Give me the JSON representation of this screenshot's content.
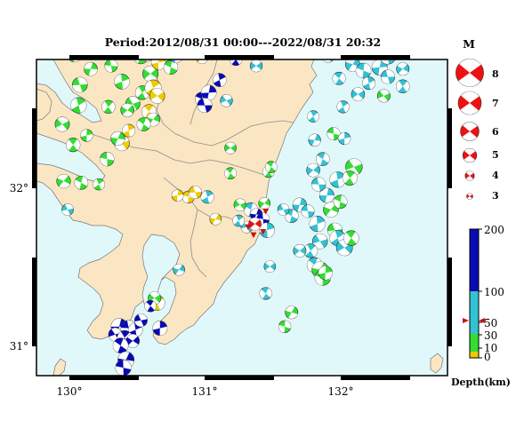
{
  "title": "Period:2012/08/31 00:00---2022/08/31 20:32",
  "map": {
    "lon_ticks": [
      "130°",
      "131°",
      "132°"
    ],
    "lat_ticks": [
      "32°",
      "31°"
    ],
    "colors": {
      "sea": "#e1f8fa",
      "land": "#fae6c3",
      "border": "#8c8c8c",
      "frame": "#000000",
      "mainshock": "#ee1111",
      "station": "#cc1111"
    }
  },
  "magnitude_legend": {
    "heading": "M",
    "items": [
      "8",
      "7",
      "6",
      "5",
      "4",
      "3"
    ]
  },
  "depth_legend": {
    "ticks": [
      "200",
      "100",
      "50",
      "30",
      "10",
      "0"
    ],
    "label": "Depth(km)",
    "colors": {
      "deep": "#0a0ab4",
      "mid": "#33c2d3",
      "shallow": "#33dd33",
      "surface": "#eecc00"
    }
  },
  "events": [
    {
      "lon": 130.36,
      "lat": 31.24,
      "m": 4.4,
      "d": "deep"
    },
    {
      "lon": 130.43,
      "lat": 31.23,
      "m": 4.3,
      "d": "deep"
    },
    {
      "lon": 130.48,
      "lat": 31.22,
      "m": 4.0,
      "d": "deep"
    },
    {
      "lon": 130.33,
      "lat": 31.19,
      "m": 3.9,
      "d": "deep"
    },
    {
      "lon": 130.4,
      "lat": 31.17,
      "m": 4.1,
      "d": "deep"
    },
    {
      "lon": 130.46,
      "lat": 31.15,
      "m": 3.9,
      "d": "deep"
    },
    {
      "lon": 130.37,
      "lat": 31.12,
      "m": 4.2,
      "d": "deep"
    },
    {
      "lon": 130.41,
      "lat": 31.03,
      "m": 4.4,
      "d": "deep"
    },
    {
      "lon": 130.39,
      "lat": 30.98,
      "m": 4.3,
      "d": "deep"
    },
    {
      "lon": 130.66,
      "lat": 31.23,
      "m": 4.1,
      "d": "deep"
    },
    {
      "lon": 130.52,
      "lat": 31.28,
      "m": 3.8,
      "d": "deep"
    },
    {
      "lon": 130.64,
      "lat": 31.39,
      "m": 4.2,
      "d": "surface"
    },
    {
      "lon": 130.62,
      "lat": 31.42,
      "m": 3.8,
      "d": "shallow"
    },
    {
      "lon": 130.59,
      "lat": 31.37,
      "m": 3.6,
      "d": "deep"
    },
    {
      "lon": 130.8,
      "lat": 31.6,
      "m": 3.6,
      "d": "mid"
    },
    {
      "lon": 130.97,
      "lat": 32.68,
      "m": 4.0,
      "d": "deep"
    },
    {
      "lon": 131.02,
      "lat": 32.72,
      "m": 4.2,
      "d": "deep"
    },
    {
      "lon": 130.99,
      "lat": 32.64,
      "m": 4.1,
      "d": "deep"
    },
    {
      "lon": 131.1,
      "lat": 32.8,
      "m": 3.9,
      "d": "deep"
    },
    {
      "lon": 131.15,
      "lat": 32.67,
      "m": 3.7,
      "d": "mid"
    },
    {
      "lon": 131.22,
      "lat": 32.93,
      "m": 3.7,
      "d": "deep"
    },
    {
      "lon": 130.97,
      "lat": 32.94,
      "m": 3.6,
      "d": "surface"
    },
    {
      "lon": 131.33,
      "lat": 31.98,
      "m": 4.0,
      "d": "mid"
    },
    {
      "lon": 131.37,
      "lat": 31.95,
      "m": 3.7,
      "d": "deep"
    },
    {
      "lon": 131.42,
      "lat": 31.92,
      "m": 3.8,
      "d": "deep"
    },
    {
      "lon": 131.45,
      "lat": 31.85,
      "m": 4.2,
      "d": "mid"
    },
    {
      "lon": 131.3,
      "lat": 31.87,
      "m": 3.6,
      "d": "mid"
    },
    {
      "lon": 131.24,
      "lat": 31.91,
      "m": 3.6,
      "d": "mid"
    },
    {
      "lon": 131.47,
      "lat": 31.62,
      "m": 3.6,
      "d": "mid"
    },
    {
      "lon": 131.44,
      "lat": 31.45,
      "m": 3.7,
      "d": "mid"
    },
    {
      "lon": 131.07,
      "lat": 31.92,
      "m": 3.6,
      "d": "surface"
    },
    {
      "lon": 130.87,
      "lat": 32.06,
      "m": 3.7,
      "d": "surface"
    },
    {
      "lon": 130.79,
      "lat": 32.07,
      "m": 3.6,
      "d": "surface"
    },
    {
      "lon": 130.92,
      "lat": 32.09,
      "m": 3.8,
      "d": "surface"
    },
    {
      "lon": 131.01,
      "lat": 32.06,
      "m": 3.8,
      "d": "mid"
    },
    {
      "lon": 131.25,
      "lat": 32.01,
      "m": 3.7,
      "d": "shallow"
    },
    {
      "lon": 131.46,
      "lat": 32.22,
      "m": 3.6,
      "d": "shallow"
    },
    {
      "lon": 131.43,
      "lat": 32.02,
      "m": 3.6,
      "d": "shallow"
    },
    {
      "lon": 131.63,
      "lat": 31.94,
      "m": 3.9,
      "d": "mid"
    },
    {
      "lon": 131.69,
      "lat": 32.01,
      "m": 4.0,
      "d": "mid"
    },
    {
      "lon": 131.75,
      "lat": 31.97,
      "m": 3.8,
      "d": "mid"
    },
    {
      "lon": 131.82,
      "lat": 31.89,
      "m": 4.3,
      "d": "mid"
    },
    {
      "lon": 131.84,
      "lat": 31.78,
      "m": 4.2,
      "d": "mid"
    },
    {
      "lon": 131.77,
      "lat": 31.72,
      "m": 4.0,
      "d": "mid"
    },
    {
      "lon": 131.69,
      "lat": 31.72,
      "m": 3.8,
      "d": "mid"
    },
    {
      "lon": 131.8,
      "lat": 31.63,
      "m": 4.2,
      "d": "mid"
    },
    {
      "lon": 131.84,
      "lat": 31.6,
      "m": 4.4,
      "d": "shallow"
    },
    {
      "lon": 131.86,
      "lat": 31.55,
      "m": 4.3,
      "d": "shallow"
    },
    {
      "lon": 131.88,
      "lat": 31.58,
      "m": 4.0,
      "d": "shallow"
    },
    {
      "lon": 131.95,
      "lat": 31.85,
      "m": 4.1,
      "d": "shallow"
    },
    {
      "lon": 131.97,
      "lat": 31.8,
      "m": 4.3,
      "d": "mid"
    },
    {
      "lon": 132.02,
      "lat": 31.74,
      "m": 4.4,
      "d": "mid"
    },
    {
      "lon": 132.07,
      "lat": 31.8,
      "m": 4.2,
      "d": "shallow"
    },
    {
      "lon": 131.92,
      "lat": 31.98,
      "m": 4.2,
      "d": "shallow"
    },
    {
      "lon": 131.99,
      "lat": 32.03,
      "m": 3.9,
      "d": "shallow"
    },
    {
      "lon": 131.89,
      "lat": 32.07,
      "m": 4.1,
      "d": "mid"
    },
    {
      "lon": 131.83,
      "lat": 32.14,
      "m": 4.0,
      "d": "mid"
    },
    {
      "lon": 131.97,
      "lat": 32.17,
      "m": 4.3,
      "d": "mid"
    },
    {
      "lon": 132.09,
      "lat": 32.25,
      "m": 4.5,
      "d": "shallow"
    },
    {
      "lon": 132.06,
      "lat": 32.18,
      "m": 4.1,
      "d": "shallow"
    },
    {
      "lon": 131.79,
      "lat": 32.23,
      "m": 3.9,
      "d": "mid"
    },
    {
      "lon": 131.86,
      "lat": 32.3,
      "m": 3.9,
      "d": "mid"
    },
    {
      "lon": 131.8,
      "lat": 32.42,
      "m": 3.7,
      "d": "mid"
    },
    {
      "lon": 131.94,
      "lat": 32.46,
      "m": 3.8,
      "d": "shallow"
    },
    {
      "lon": 132.02,
      "lat": 32.43,
      "m": 3.7,
      "d": "mid"
    },
    {
      "lon": 131.57,
      "lat": 31.98,
      "m": 3.6,
      "d": "mid"
    },
    {
      "lon": 132.01,
      "lat": 32.63,
      "m": 3.7,
      "d": "mid"
    },
    {
      "lon": 132.12,
      "lat": 32.71,
      "m": 3.9,
      "d": "mid"
    },
    {
      "lon": 131.98,
      "lat": 32.81,
      "m": 3.8,
      "d": "mid"
    },
    {
      "lon": 132.08,
      "lat": 32.9,
      "m": 4.1,
      "d": "mid"
    },
    {
      "lon": 132.16,
      "lat": 32.86,
      "m": 4.2,
      "d": "mid"
    },
    {
      "lon": 132.28,
      "lat": 32.88,
      "m": 4.3,
      "d": "mid"
    },
    {
      "lon": 132.34,
      "lat": 32.82,
      "m": 4.0,
      "d": "mid"
    },
    {
      "lon": 132.2,
      "lat": 32.78,
      "m": 3.8,
      "d": "mid"
    },
    {
      "lon": 132.31,
      "lat": 32.7,
      "m": 3.8,
      "d": "shallow"
    },
    {
      "lon": 132.45,
      "lat": 32.76,
      "m": 3.9,
      "d": "mid"
    },
    {
      "lon": 132.45,
      "lat": 32.87,
      "m": 3.8,
      "d": "mid"
    },
    {
      "lon": 132.04,
      "lat": 32.98,
      "m": 3.9,
      "d": "mid"
    },
    {
      "lon": 132.22,
      "lat": 32.99,
      "m": 4.0,
      "d": "mid"
    },
    {
      "lon": 132.34,
      "lat": 32.95,
      "m": 4.3,
      "d": "mid"
    },
    {
      "lon": 132.5,
      "lat": 32.97,
      "m": 3.9,
      "d": "mid"
    },
    {
      "lon": 131.9,
      "lat": 32.95,
      "m": 3.7,
      "d": "mid"
    },
    {
      "lon": 131.79,
      "lat": 32.57,
      "m": 3.6,
      "d": "mid"
    },
    {
      "lon": 131.37,
      "lat": 32.89,
      "m": 3.7,
      "d": "mid"
    },
    {
      "lon": 131.48,
      "lat": 32.25,
      "m": 3.6,
      "d": "shallow"
    },
    {
      "lon": 131.63,
      "lat": 31.33,
      "m": 3.8,
      "d": "shallow"
    },
    {
      "lon": 131.58,
      "lat": 31.24,
      "m": 3.7,
      "d": "shallow"
    },
    {
      "lon": 130.03,
      "lat": 32.96,
      "m": 4.1,
      "d": "shallow"
    },
    {
      "lon": 130.07,
      "lat": 32.77,
      "m": 4.2,
      "d": "shallow"
    },
    {
      "lon": 130.06,
      "lat": 32.64,
      "m": 4.3,
      "d": "shallow"
    },
    {
      "lon": 129.94,
      "lat": 32.52,
      "m": 4.1,
      "d": "shallow"
    },
    {
      "lon": 130.02,
      "lat": 32.39,
      "m": 4.0,
      "d": "shallow"
    },
    {
      "lon": 129.95,
      "lat": 32.16,
      "m": 4.0,
      "d": "shallow"
    },
    {
      "lon": 130.08,
      "lat": 32.15,
      "m": 3.9,
      "d": "shallow"
    },
    {
      "lon": 130.15,
      "lat": 32.87,
      "m": 3.9,
      "d": "shallow"
    },
    {
      "lon": 130.3,
      "lat": 32.89,
      "m": 3.8,
      "d": "shallow"
    },
    {
      "lon": 130.38,
      "lat": 32.79,
      "m": 4.2,
      "d": "shallow"
    },
    {
      "lon": 130.46,
      "lat": 32.65,
      "m": 4.1,
      "d": "shallow"
    },
    {
      "lon": 130.53,
      "lat": 32.72,
      "m": 4.0,
      "d": "shallow"
    },
    {
      "lon": 130.59,
      "lat": 32.84,
      "m": 4.3,
      "d": "shallow"
    },
    {
      "lon": 130.52,
      "lat": 32.95,
      "m": 4.2,
      "d": "shallow"
    },
    {
      "lon": 130.62,
      "lat": 32.98,
      "m": 4.4,
      "d": "shallow"
    },
    {
      "lon": 130.71,
      "lat": 32.96,
      "m": 3.9,
      "d": "shallow"
    },
    {
      "lon": 130.65,
      "lat": 32.91,
      "m": 4.0,
      "d": "surface"
    },
    {
      "lon": 130.57,
      "lat": 32.96,
      "m": 3.8,
      "d": "surface"
    },
    {
      "lon": 130.61,
      "lat": 32.75,
      "m": 4.4,
      "d": "surface"
    },
    {
      "lon": 130.64,
      "lat": 32.7,
      "m": 4.2,
      "d": "surface"
    },
    {
      "lon": 130.58,
      "lat": 32.6,
      "m": 4.1,
      "d": "surface"
    },
    {
      "lon": 130.61,
      "lat": 32.55,
      "m": 3.9,
      "d": "shallow"
    },
    {
      "lon": 130.74,
      "lat": 32.88,
      "m": 4.0,
      "d": "shallow"
    },
    {
      "lon": 130.78,
      "lat": 32.95,
      "m": 3.8,
      "d": "mid"
    },
    {
      "lon": 130.85,
      "lat": 32.98,
      "m": 3.6,
      "d": "surface"
    },
    {
      "lon": 130.43,
      "lat": 32.48,
      "m": 3.8,
      "d": "surface"
    },
    {
      "lon": 130.38,
      "lat": 32.4,
      "m": 4.2,
      "d": "surface"
    },
    {
      "lon": 130.28,
      "lat": 32.63,
      "m": 3.9,
      "d": "shallow"
    },
    {
      "lon": 130.42,
      "lat": 32.61,
      "m": 3.9,
      "d": "shallow"
    },
    {
      "lon": 130.54,
      "lat": 32.52,
      "m": 3.9,
      "d": "shallow"
    },
    {
      "lon": 130.35,
      "lat": 32.43,
      "m": 4.0,
      "d": "shallow"
    },
    {
      "lon": 130.27,
      "lat": 32.3,
      "m": 4.0,
      "d": "shallow"
    },
    {
      "lon": 130.12,
      "lat": 32.45,
      "m": 3.7,
      "d": "shallow"
    },
    {
      "lon": 129.98,
      "lat": 31.98,
      "m": 3.6,
      "d": "mid"
    },
    {
      "lon": 130.21,
      "lat": 32.14,
      "m": 3.6,
      "d": "shallow"
    },
    {
      "lon": 131.18,
      "lat": 32.37,
      "m": 3.6,
      "d": "shallow"
    },
    {
      "lon": 131.18,
      "lat": 32.21,
      "m": 3.6,
      "d": "shallow"
    }
  ],
  "mainshock": {
    "lon": 131.36,
    "lat": 31.89,
    "m": 4.4
  },
  "stations": [
    {
      "lon": 131.44,
      "lat": 31.97
    },
    {
      "lon": 131.31,
      "lat": 31.87
    },
    {
      "lon": 131.42,
      "lat": 31.84
    },
    {
      "lon": 131.35,
      "lat": 31.82
    }
  ],
  "highlight_depth": 59
}
